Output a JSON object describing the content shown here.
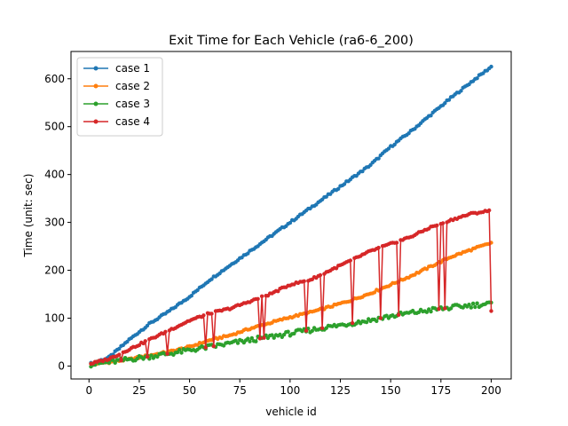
{
  "chart_data": {
    "type": "line",
    "title": "Exit Time for Each Vehicle (ra6-6_200)",
    "xlabel": "vehicle id",
    "ylabel": "Time (unit: sec)",
    "xlim": [
      -8.95,
      209.95
    ],
    "ylim": [
      -27,
      657
    ],
    "xticks": [
      0,
      25,
      50,
      75,
      100,
      125,
      150,
      175,
      200
    ],
    "yticks": [
      0,
      100,
      200,
      300,
      400,
      500,
      600
    ],
    "legend_position": "upper-left",
    "n_points": 200,
    "series": [
      {
        "name": "case 1",
        "color": "#1f77b4",
        "x": [
          1,
          10,
          20,
          30,
          40,
          50,
          60,
          70,
          80,
          90,
          100,
          110,
          120,
          130,
          140,
          150,
          160,
          170,
          180,
          190,
          200
        ],
        "values": [
          5,
          18,
          55,
          88,
          115,
          145,
          180,
          210,
          240,
          270,
          300,
          330,
          360,
          390,
          420,
          458,
          490,
          525,
          560,
          593,
          625
        ]
      },
      {
        "name": "case 2",
        "color": "#ff7f0e",
        "x": [
          1,
          10,
          20,
          30,
          40,
          50,
          60,
          70,
          80,
          90,
          100,
          110,
          120,
          130,
          140,
          150,
          160,
          170,
          180,
          190,
          200
        ],
        "values": [
          4,
          8,
          14,
          22,
          30,
          40,
          54,
          64,
          78,
          90,
          102,
          112,
          124,
          137,
          152,
          170,
          188,
          208,
          228,
          243,
          257
        ]
      },
      {
        "name": "case 3",
        "color": "#2ca02c",
        "x": [
          1,
          10,
          20,
          30,
          40,
          50,
          60,
          70,
          80,
          90,
          100,
          110,
          120,
          130,
          140,
          150,
          160,
          170,
          180,
          190,
          200
        ],
        "values": [
          3,
          8,
          14,
          20,
          26,
          33,
          40,
          47,
          54,
          61,
          68,
          75,
          82,
          89,
          96,
          104,
          111,
          117,
          122,
          127,
          130
        ]
      },
      {
        "name": "case 4",
        "color": "#d62728",
        "x": [
          1,
          10,
          20,
          30,
          40,
          50,
          60,
          70,
          80,
          90,
          100,
          110,
          120,
          130,
          140,
          150,
          160,
          170,
          180,
          190,
          200
        ],
        "values": [
          5,
          15,
          35,
          55,
          75,
          95,
          110,
          120,
          135,
          150,
          170,
          180,
          200,
          220,
          240,
          255,
          270,
          290,
          305,
          318,
          325
        ],
        "low_values": [
          5,
          8,
          14,
          20,
          26,
          33,
          40,
          47,
          54,
          61,
          68,
          75,
          82,
          89,
          96,
          104,
          111,
          117,
          122,
          127,
          115
        ]
      }
    ]
  }
}
